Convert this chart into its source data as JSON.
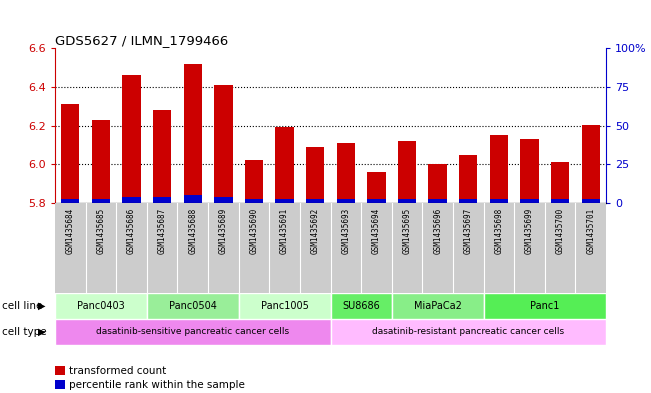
{
  "title": "GDS5627 / ILMN_1799466",
  "samples": [
    "GSM1435684",
    "GSM1435685",
    "GSM1435686",
    "GSM1435687",
    "GSM1435688",
    "GSM1435689",
    "GSM1435690",
    "GSM1435691",
    "GSM1435692",
    "GSM1435693",
    "GSM1435694",
    "GSM1435695",
    "GSM1435696",
    "GSM1435697",
    "GSM1435698",
    "GSM1435699",
    "GSM1435700",
    "GSM1435701"
  ],
  "red_values": [
    6.31,
    6.23,
    6.46,
    6.28,
    6.52,
    6.41,
    6.02,
    6.19,
    6.09,
    6.11,
    5.96,
    6.12,
    6.0,
    6.05,
    6.15,
    6.13,
    6.01,
    6.2
  ],
  "blue_values": [
    0.02,
    0.02,
    0.03,
    0.03,
    0.04,
    0.03,
    0.02,
    0.02,
    0.02,
    0.02,
    0.02,
    0.02,
    0.02,
    0.02,
    0.02,
    0.02,
    0.02,
    0.02
  ],
  "ylim": [
    5.8,
    6.6
  ],
  "yticks_left": [
    5.8,
    6.0,
    6.2,
    6.4,
    6.6
  ],
  "yticks_right_vals": [
    0,
    25,
    50,
    75,
    100
  ],
  "yticks_right_labels": [
    "0",
    "25",
    "50",
    "75",
    "100%"
  ],
  "bar_width": 0.6,
  "red_color": "#cc0000",
  "blue_color": "#0000cc",
  "cell_lines": [
    {
      "label": "Panc0403",
      "start": 0,
      "end": 2,
      "color": "#ccffcc"
    },
    {
      "label": "Panc0504",
      "start": 3,
      "end": 5,
      "color": "#99ee99"
    },
    {
      "label": "Panc1005",
      "start": 6,
      "end": 8,
      "color": "#ccffcc"
    },
    {
      "label": "SU8686",
      "start": 9,
      "end": 10,
      "color": "#66ee66"
    },
    {
      "label": "MiaPaCa2",
      "start": 11,
      "end": 13,
      "color": "#88ee88"
    },
    {
      "label": "Panc1",
      "start": 14,
      "end": 17,
      "color": "#55ee55"
    }
  ],
  "cell_types": [
    {
      "label": "dasatinib-sensitive pancreatic cancer cells",
      "start": 0,
      "end": 8,
      "color": "#ee88ee"
    },
    {
      "label": "dasatinib-resistant pancreatic cancer cells",
      "start": 9,
      "end": 17,
      "color": "#ffbbff"
    }
  ],
  "cell_line_label": "cell line",
  "cell_type_label": "cell type",
  "legend_items": [
    {
      "color": "#cc0000",
      "label": "transformed count"
    },
    {
      "color": "#0000cc",
      "label": "percentile rank within the sample"
    }
  ],
  "bg_color": "#ffffff",
  "sample_bg_color": "#cccccc",
  "grid_ticks": [
    6.0,
    6.2,
    6.4
  ]
}
